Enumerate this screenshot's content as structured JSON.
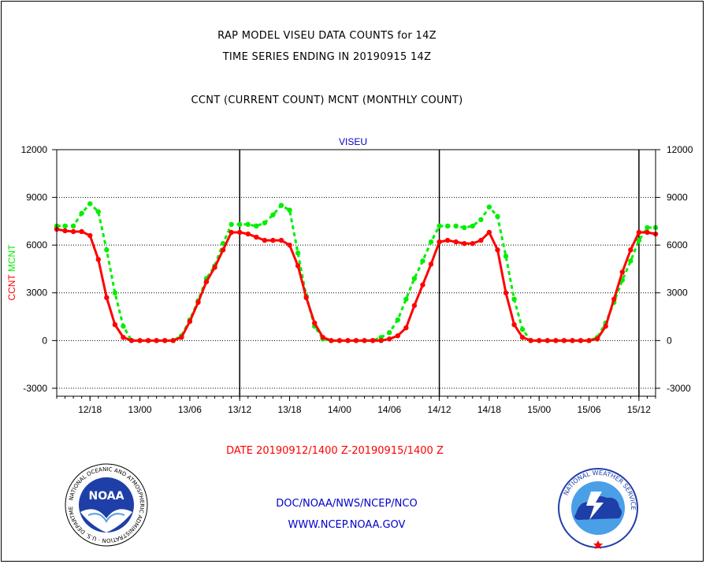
{
  "header": {
    "line1": "RAP MODEL VISEU DATA COUNTS for 14Z",
    "line2": "TIME SERIES ENDING IN 20190915 14Z",
    "line3": "CCNT (CURRENT COUNT) MCNT (MONTHLY COUNT)"
  },
  "footer": {
    "date_range": "DATE 20190912/1400 Z-20190915/1400 Z",
    "org_path": "DOC/NOAA/NWS/NCEP/NCO",
    "website": "WWW.NCEP.NOAA.GOV"
  },
  "logos": {
    "noaa_text": "NOAA",
    "noaa_ring_text": "NATIONAL OCEANIC AND ATMOSPHERIC ADMINISTRATION · U.S. DEPARTMENT OF COMMERCE",
    "nws_ring_text": "NATIONAL WEATHER SERVICE"
  },
  "colors": {
    "ccnt": "#ff0000",
    "mcnt": "#00ee00",
    "title_blue": "#0000cc"
  },
  "chart_data": {
    "type": "line",
    "title": "VISEU",
    "ylabel_left": [
      "CCNT",
      "MCNT"
    ],
    "ylim": [
      -3500,
      12000
    ],
    "yticks": [
      -3000,
      0,
      3000,
      6000,
      9000,
      12000
    ],
    "xticks": [
      "12/18",
      "13/00",
      "13/06",
      "13/12",
      "13/18",
      "14/00",
      "14/06",
      "14/12",
      "14/18",
      "15/00",
      "15/06",
      "15/12"
    ],
    "xtick_hours": [
      4,
      10,
      16,
      22,
      28,
      34,
      40,
      46,
      52,
      58,
      64,
      70
    ],
    "xlim_hours": [
      0,
      72
    ],
    "day_boundaries_hours": [
      22,
      46,
      70
    ],
    "grid": "dotted horizontal",
    "x_hours": [
      0,
      1,
      2,
      3,
      4,
      5,
      6,
      7,
      8,
      9,
      10,
      11,
      12,
      13,
      14,
      15,
      16,
      17,
      18,
      19,
      20,
      21,
      22,
      23,
      24,
      25,
      26,
      27,
      28,
      29,
      30,
      31,
      32,
      33,
      34,
      35,
      36,
      37,
      38,
      39,
      40,
      41,
      42,
      43,
      44,
      45,
      46,
      47,
      48,
      49,
      50,
      51,
      52,
      53,
      54,
      55,
      56,
      57,
      58,
      59,
      60,
      61,
      62,
      63,
      64,
      65,
      66,
      67,
      68,
      69,
      70,
      71,
      72
    ],
    "series": [
      {
        "name": "CCNT",
        "color": "#ff0000",
        "style": "solid",
        "values": [
          7000,
          6900,
          6850,
          6850,
          6600,
          5100,
          2700,
          1000,
          200,
          0,
          0,
          0,
          0,
          0,
          0,
          200,
          1200,
          2400,
          3700,
          4600,
          5700,
          6800,
          6800,
          6700,
          6500,
          6300,
          6300,
          6300,
          6000,
          4700,
          2700,
          1100,
          200,
          0,
          0,
          0,
          0,
          0,
          0,
          0,
          100,
          300,
          800,
          2200,
          3500,
          4800,
          6200,
          6300,
          6200,
          6100,
          6100,
          6300,
          6800,
          5700,
          3000,
          1000,
          200,
          0,
          0,
          0,
          0,
          0,
          0,
          0,
          0,
          100,
          900,
          2600,
          4300,
          5700,
          6800,
          6800,
          6700
        ]
      },
      {
        "name": "MCNT",
        "color": "#00ee00",
        "style": "dashed",
        "values": [
          7200,
          7200,
          7200,
          8000,
          8600,
          8100,
          5700,
          3000,
          900,
          0,
          0,
          0,
          0,
          0,
          0,
          300,
          1300,
          2500,
          3900,
          4700,
          6100,
          7300,
          7300,
          7300,
          7200,
          7400,
          7900,
          8500,
          8200,
          5500,
          2800,
          900,
          100,
          0,
          0,
          0,
          0,
          0,
          0,
          200,
          500,
          1300,
          2600,
          3900,
          5000,
          6200,
          7200,
          7200,
          7200,
          7100,
          7200,
          7600,
          8400,
          7800,
          5300,
          2600,
          700,
          0,
          0,
          0,
          0,
          0,
          0,
          0,
          0,
          200,
          1100,
          2400,
          3800,
          5000,
          6300,
          7100,
          7100
        ]
      }
    ]
  }
}
